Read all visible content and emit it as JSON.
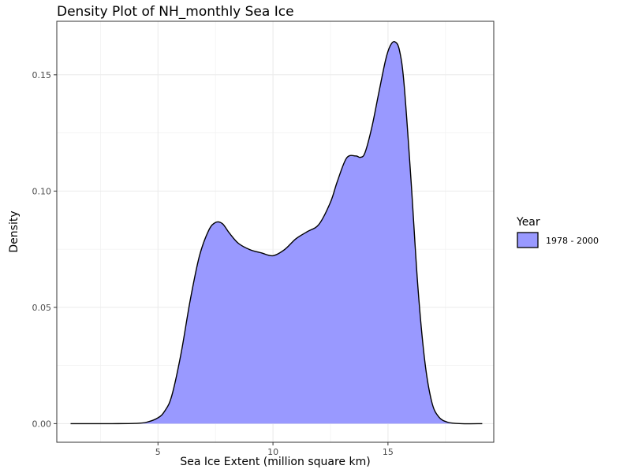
{
  "chart_data": {
    "type": "area",
    "title": "Density Plot of NH_monthly Sea Ice",
    "xlabel": "Sea Ice Extent (million square km)",
    "ylabel": "Density",
    "xlim": [
      0.6,
      19.6
    ],
    "ylim": [
      -0.008,
      0.173
    ],
    "xticks": [
      5,
      10,
      15
    ],
    "yticks": [
      0.0,
      0.05,
      0.1,
      0.15
    ],
    "ytick_labels": [
      "0.00",
      "0.05",
      "0.10",
      "0.15"
    ],
    "grid": true,
    "legend": {
      "title": "Year",
      "position": "right"
    },
    "series": [
      {
        "name": "1978 - 2000",
        "fill": "#9999ff",
        "stroke": "#000000",
        "x": [
          1.2,
          3.0,
          4.0,
          4.5,
          5.0,
          5.3,
          5.6,
          6.0,
          6.4,
          6.8,
          7.2,
          7.5,
          7.8,
          8.1,
          8.5,
          9.0,
          9.5,
          10.0,
          10.5,
          11.0,
          11.5,
          12.0,
          12.5,
          12.8,
          13.2,
          13.6,
          13.8,
          14.0,
          14.3,
          14.6,
          14.9,
          15.1,
          15.3,
          15.5,
          15.7,
          16.0,
          16.3,
          16.6,
          16.9,
          17.2,
          17.6,
          18.2,
          19.1
        ],
        "y": [
          0.0,
          0.0,
          0.0001,
          0.0006,
          0.0025,
          0.0055,
          0.012,
          0.03,
          0.053,
          0.072,
          0.083,
          0.0865,
          0.086,
          0.082,
          0.0775,
          0.0748,
          0.0734,
          0.0722,
          0.0748,
          0.0795,
          0.0826,
          0.0857,
          0.0952,
          0.1042,
          0.1142,
          0.1151,
          0.1145,
          0.1165,
          0.1275,
          0.1422,
          0.1565,
          0.1625,
          0.1642,
          0.1605,
          0.146,
          0.105,
          0.059,
          0.027,
          0.0095,
          0.003,
          0.0006,
          0.0,
          0.0
        ]
      }
    ]
  }
}
